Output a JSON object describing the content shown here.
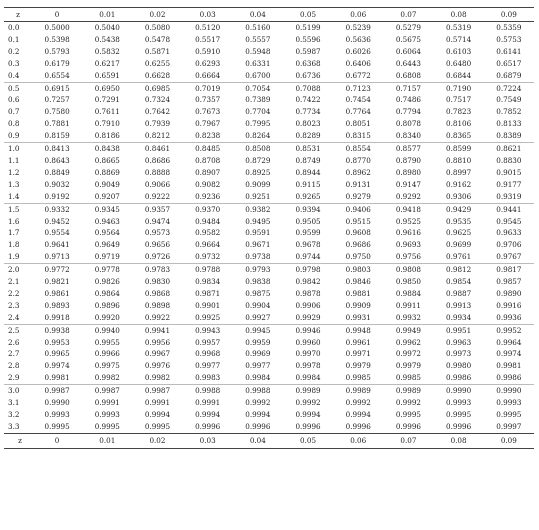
{
  "table": {
    "header": [
      "z",
      "0",
      "0.01",
      "0.02",
      "0.03",
      "0.04",
      "0.05",
      "0.06",
      "0.07",
      "0.08",
      "0.09"
    ],
    "footer": [
      "z",
      "0",
      "0.01",
      "0.02",
      "0.03",
      "0.04",
      "0.05",
      "0.06",
      "0.07",
      "0.08",
      "0.09"
    ],
    "rows": [
      [
        "0.0",
        "0.5000",
        "0.5040",
        "0.5080",
        "0.5120",
        "0.5160",
        "0.5199",
        "0.5239",
        "0.5279",
        "0.5319",
        "0.5359"
      ],
      [
        "0.1",
        "0.5398",
        "0.5438",
        "0.5478",
        "0.5517",
        "0.5557",
        "0.5596",
        "0.5636",
        "0.5675",
        "0.5714",
        "0.5753"
      ],
      [
        "0.2",
        "0.5793",
        "0.5832",
        "0.5871",
        "0.5910",
        "0.5948",
        "0.5987",
        "0.6026",
        "0.6064",
        "0.6103",
        "0.6141"
      ],
      [
        "0.3",
        "0.6179",
        "0.6217",
        "0.6255",
        "0.6293",
        "0.6331",
        "0.6368",
        "0.6406",
        "0.6443",
        "0.6480",
        "0.6517"
      ],
      [
        "0.4",
        "0.6554",
        "0.6591",
        "0.6628",
        "0.6664",
        "0.6700",
        "0.6736",
        "0.6772",
        "0.6808",
        "0.6844",
        "0.6879"
      ],
      [
        "0.5",
        "0.6915",
        "0.6950",
        "0.6985",
        "0.7019",
        "0.7054",
        "0.7088",
        "0.7123",
        "0.7157",
        "0.7190",
        "0.7224"
      ],
      [
        "0.6",
        "0.7257",
        "0.7291",
        "0.7324",
        "0.7357",
        "0.7389",
        "0.7422",
        "0.7454",
        "0.7486",
        "0.7517",
        "0.7549"
      ],
      [
        "0.7",
        "0.7580",
        "0.7611",
        "0.7642",
        "0.7673",
        "0.7704",
        "0.7734",
        "0.7764",
        "0.7794",
        "0.7823",
        "0.7852"
      ],
      [
        "0.8",
        "0.7881",
        "0.7910",
        "0.7939",
        "0.7967",
        "0.7995",
        "0.8023",
        "0.8051",
        "0.8078",
        "0.8106",
        "0.8133"
      ],
      [
        "0.9",
        "0.8159",
        "0.8186",
        "0.8212",
        "0.8238",
        "0.8264",
        "0.8289",
        "0.8315",
        "0.8340",
        "0.8365",
        "0.8389"
      ],
      [
        "1.0",
        "0.8413",
        "0.8438",
        "0.8461",
        "0.8485",
        "0.8508",
        "0.8531",
        "0.8554",
        "0.8577",
        "0.8599",
        "0.8621"
      ],
      [
        "1.1",
        "0.8643",
        "0.8665",
        "0.8686",
        "0.8708",
        "0.8729",
        "0.8749",
        "0.8770",
        "0.8790",
        "0.8810",
        "0.8830"
      ],
      [
        "1.2",
        "0.8849",
        "0.8869",
        "0.8888",
        "0.8907",
        "0.8925",
        "0.8944",
        "0.8962",
        "0.8980",
        "0.8997",
        "0.9015"
      ],
      [
        "1.3",
        "0.9032",
        "0.9049",
        "0.9066",
        "0.9082",
        "0.9099",
        "0.9115",
        "0.9131",
        "0.9147",
        "0.9162",
        "0.9177"
      ],
      [
        "1.4",
        "0.9192",
        "0.9207",
        "0.9222",
        "0.9236",
        "0.9251",
        "0.9265",
        "0.9279",
        "0.9292",
        "0.9306",
        "0.9319"
      ],
      [
        "1.5",
        "0.9332",
        "0.9345",
        "0.9357",
        "0.9370",
        "0.9382",
        "0.9394",
        "0.9406",
        "0.9418",
        "0.9429",
        "0.9441"
      ],
      [
        "1.6",
        "0.9452",
        "0.9463",
        "0.9474",
        "0.9484",
        "0.9495",
        "0.9505",
        "0.9515",
        "0.9525",
        "0.9535",
        "0.9545"
      ],
      [
        "1.7",
        "0.9554",
        "0.9564",
        "0.9573",
        "0.9582",
        "0.9591",
        "0.9599",
        "0.9608",
        "0.9616",
        "0.9625",
        "0.9633"
      ],
      [
        "1.8",
        "0.9641",
        "0.9649",
        "0.9656",
        "0.9664",
        "0.9671",
        "0.9678",
        "0.9686",
        "0.9693",
        "0.9699",
        "0.9706"
      ],
      [
        "1.9",
        "0.9713",
        "0.9719",
        "0.9726",
        "0.9732",
        "0.9738",
        "0.9744",
        "0.9750",
        "0.9756",
        "0.9761",
        "0.9767"
      ],
      [
        "2.0",
        "0.9772",
        "0.9778",
        "0.9783",
        "0.9788",
        "0.9793",
        "0.9798",
        "0.9803",
        "0.9808",
        "0.9812",
        "0.9817"
      ],
      [
        "2.1",
        "0.9821",
        "0.9826",
        "0.9830",
        "0.9834",
        "0.9838",
        "0.9842",
        "0.9846",
        "0.9850",
        "0.9854",
        "0.9857"
      ],
      [
        "2.2",
        "0.9861",
        "0.9864",
        "0.9868",
        "0.9871",
        "0.9875",
        "0.9878",
        "0.9881",
        "0.9884",
        "0.9887",
        "0.9890"
      ],
      [
        "2.3",
        "0.9893",
        "0.9896",
        "0.9898",
        "0.9901",
        "0.9904",
        "0.9906",
        "0.9909",
        "0.9911",
        "0.9913",
        "0.9916"
      ],
      [
        "2.4",
        "0.9918",
        "0.9920",
        "0.9922",
        "0.9925",
        "0.9927",
        "0.9929",
        "0.9931",
        "0.9932",
        "0.9934",
        "0.9936"
      ],
      [
        "2.5",
        "0.9938",
        "0.9940",
        "0.9941",
        "0.9943",
        "0.9945",
        "0.9946",
        "0.9948",
        "0.9949",
        "0.9951",
        "0.9952"
      ],
      [
        "2.6",
        "0.9953",
        "0.9955",
        "0.9956",
        "0.9957",
        "0.9959",
        "0.9960",
        "0.9961",
        "0.9962",
        "0.9963",
        "0.9964"
      ],
      [
        "2.7",
        "0.9965",
        "0.9966",
        "0.9967",
        "0.9968",
        "0.9969",
        "0.9970",
        "0.9971",
        "0.9972",
        "0.9973",
        "0.9974"
      ],
      [
        "2.8",
        "0.9974",
        "0.9975",
        "0.9976",
        "0.9977",
        "0.9977",
        "0.9978",
        "0.9979",
        "0.9979",
        "0.9980",
        "0.9981"
      ],
      [
        "2.9",
        "0.9981",
        "0.9982",
        "0.9982",
        "0.9983",
        "0.9984",
        "0.9984",
        "0.9985",
        "0.9985",
        "0.9986",
        "0.9986"
      ],
      [
        "3.0",
        "0.9987",
        "0.9987",
        "0.9987",
        "0.9988",
        "0.9988",
        "0.9989",
        "0.9989",
        "0.9989",
        "0.9990",
        "0.9990"
      ],
      [
        "3.1",
        "0.9990",
        "0.9991",
        "0.9991",
        "0.9991",
        "0.9992",
        "0.9992",
        "0.9992",
        "0.9992",
        "0.9993",
        "0.9993"
      ],
      [
        "3.2",
        "0.9993",
        "0.9993",
        "0.9994",
        "0.9994",
        "0.9994",
        "0.9994",
        "0.9994",
        "0.9995",
        "0.9995",
        "0.9995"
      ],
      [
        "3.3",
        "0.9995",
        "0.9995",
        "0.9995",
        "0.9996",
        "0.9996",
        "0.9996",
        "0.9996",
        "0.9996",
        "0.9996",
        "0.9997"
      ]
    ]
  }
}
